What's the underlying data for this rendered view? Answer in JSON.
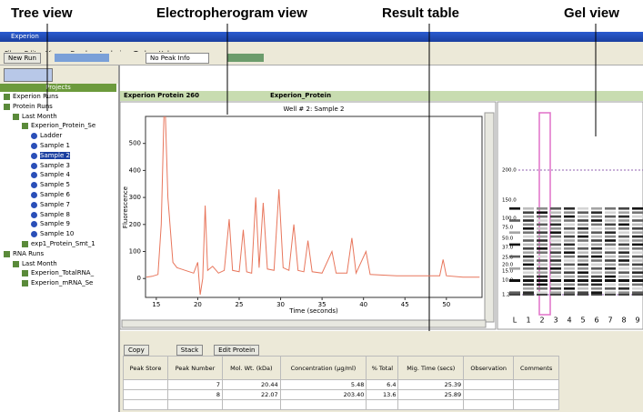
{
  "callouts": [
    "Tree view",
    "Electropherogram view",
    "Result table",
    "Gel view"
  ],
  "window": {
    "title": "Experion",
    "menu": [
      "File",
      "Edit",
      "View",
      "Graph",
      "Analysis",
      "Tools",
      "Help"
    ],
    "toolbar": {
      "new_run": "New Run",
      "peak_info": "No Peak Info"
    }
  },
  "tree": {
    "header": "Projects",
    "items": [
      "Experion Runs",
      "Protein Runs",
      "Last Month",
      "Experion_Protein_Se",
      "Ladder",
      "Sample 1",
      "Sample 2",
      "Sample 3",
      "Sample 4",
      "Sample 5",
      "Sample 6",
      "Sample 7",
      "Sample 8",
      "Sample 9",
      "Sample 10",
      "exp1_Protein_Smt_1",
      "RNA Runs",
      "Last Month",
      "Experion_TotalRNA_",
      "Experion_mRNA_Se"
    ]
  },
  "file": {
    "name": "Experion Protein 260",
    "assay": "Experion_Protein"
  },
  "chart_data": {
    "type": "line",
    "title": "Well # 2: Sample 2",
    "x_label": "Time (seconds)",
    "y_label": "Fluorescence",
    "color": "#e8765c",
    "x": [
      13.8,
      14.5,
      15.2,
      15.6,
      16.0,
      16.4,
      17.0,
      17.5,
      18.0,
      18.5,
      19.0,
      19.5,
      20.0,
      20.3,
      20.6,
      20.9,
      21.2,
      21.8,
      22.5,
      23.2,
      23.8,
      24.2,
      25.0,
      25.5,
      25.9,
      26.5,
      27.0,
      27.4,
      27.9,
      28.4,
      29.2,
      29.8,
      30.3,
      31.0,
      31.6,
      32.1,
      32.8,
      33.3,
      33.8,
      35.0,
      36.2,
      36.7,
      38.0,
      38.6,
      39.1,
      40.3,
      40.8,
      44.0,
      48.0,
      49.2,
      49.6,
      50.0,
      52.0,
      54.0
    ],
    "values": [
      5,
      8,
      15,
      200,
      700,
      300,
      60,
      40,
      35,
      30,
      25,
      20,
      60,
      -60,
      0,
      270,
      30,
      45,
      20,
      30,
      220,
      30,
      25,
      180,
      25,
      20,
      300,
      40,
      280,
      35,
      30,
      330,
      40,
      30,
      200,
      30,
      25,
      140,
      25,
      20,
      100,
      20,
      20,
      150,
      20,
      100,
      15,
      10,
      10,
      10,
      70,
      10,
      5,
      5
    ],
    "xlim": [
      13.7,
      54.3
    ],
    "ylim": [
      -70,
      600
    ],
    "xticks": [
      15,
      20,
      25,
      30,
      35,
      40,
      45,
      50
    ],
    "yticks": [
      0,
      100,
      200,
      300,
      400,
      500
    ]
  },
  "gel": {
    "markers": [
      "200.0",
      "150.0",
      "100.0",
      "75.0",
      "50.0",
      "37.0",
      "25.0",
      "20.0",
      "15.0",
      "10.0",
      "1.2"
    ],
    "lanes": [
      "L",
      "1",
      "2",
      "3",
      "4",
      "5",
      "6",
      "7",
      "8",
      "9"
    ]
  },
  "results": {
    "buttons": [
      "Copy",
      "Stack",
      "Edit Protein"
    ],
    "columns": [
      "Peak Store",
      "Peak Number",
      "Mol. Wt. (kDa)",
      "Concentration (µg/ml)",
      "% Total",
      "Mig. Time (secs)",
      "Observation",
      "Comments"
    ],
    "rows": [
      [
        "7",
        "20.44",
        "5.48",
        "6.4",
        "25.39"
      ],
      [
        "8",
        "22.07",
        "203.40",
        "13.6",
        "25.89"
      ]
    ]
  }
}
